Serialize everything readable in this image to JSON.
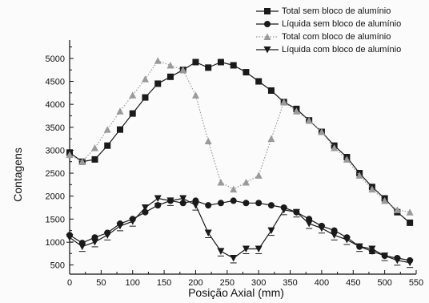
{
  "chart_data": {
    "type": "line",
    "title": "",
    "xlabel": "Posição Axial (mm)",
    "ylabel": "Contagens",
    "xlim": [
      0,
      550
    ],
    "ylim": [
      300,
      5400
    ],
    "xticks": [
      "0",
      "50",
      "100",
      "150",
      "200",
      "250",
      "300",
      "350",
      "400",
      "450",
      "500",
      "550"
    ],
    "yticks": [
      "500",
      "1000",
      "1500",
      "2000",
      "2500",
      "3000",
      "3500",
      "4000",
      "4500",
      "5000"
    ],
    "legend_position": "top-right",
    "grid": false,
    "x": [
      0,
      20,
      40,
      60,
      80,
      100,
      120,
      140,
      160,
      180,
      200,
      220,
      240,
      260,
      280,
      300,
      320,
      340,
      360,
      380,
      400,
      420,
      440,
      460,
      480,
      500,
      520,
      540
    ],
    "series": [
      {
        "name": "Total sem bloco de alumínio",
        "marker": "square",
        "style": "solid",
        "color": "#1a1a1a",
        "values": [
          2950,
          2750,
          2800,
          3100,
          3450,
          3800,
          4150,
          4450,
          4600,
          4750,
          4920,
          4800,
          4920,
          4850,
          4700,
          4500,
          4300,
          4050,
          3900,
          3650,
          3400,
          3100,
          2850,
          2500,
          2200,
          1950,
          1650,
          1420
        ]
      },
      {
        "name": "Líquida sem bloco de alumínio",
        "marker": "circle",
        "style": "solid",
        "color": "#1a1a1a",
        "values": [
          1150,
          980,
          1100,
          1200,
          1400,
          1500,
          1650,
          1800,
          1900,
          1850,
          1900,
          1800,
          1850,
          1900,
          1850,
          1850,
          1800,
          1750,
          1650,
          1500,
          1350,
          1250,
          1100,
          900,
          800,
          700,
          650,
          600
        ]
      },
      {
        "name": "Total com bloco de alumínio",
        "marker": "triangle-up",
        "style": "dotted",
        "color": "#9a9a9a",
        "values": [
          2900,
          2750,
          3050,
          3450,
          3850,
          4200,
          4550,
          4950,
          4850,
          4750,
          4200,
          3200,
          2300,
          2150,
          2300,
          2450,
          3250,
          4050,
          3850,
          3650,
          3400,
          3050,
          2800,
          2450,
          2150,
          1900,
          1700,
          1650
        ]
      },
      {
        "name": "Líquida com bloco de alumínio",
        "marker": "triangle-down",
        "style": "solid",
        "color": "#1a1a1a",
        "values": [
          1100,
          900,
          1000,
          1150,
          1350,
          1450,
          1750,
          1950,
          1900,
          1950,
          1800,
          1200,
          800,
          650,
          850,
          850,
          1250,
          1700,
          1650,
          1400,
          1300,
          1150,
          1050,
          900,
          850,
          700,
          600,
          550
        ]
      }
    ]
  }
}
